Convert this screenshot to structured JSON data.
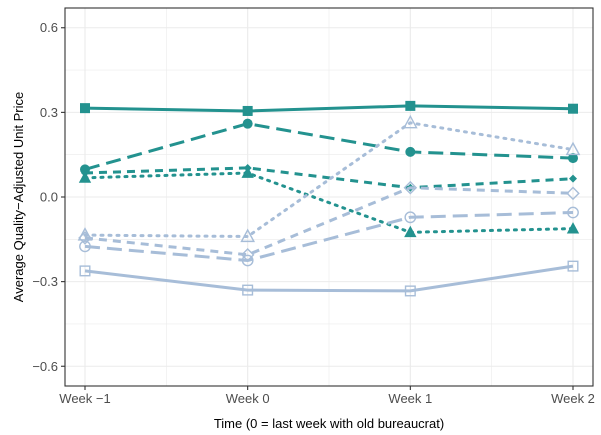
{
  "chart_data": {
    "type": "line",
    "xlabel": "Time (0 = last week with old bureaucrat)",
    "ylabel": "Average Quality−Adjusted Unit Price",
    "categories": [
      "Week −1",
      "Week 0",
      "Week 1",
      "Week 2"
    ],
    "ylim": [
      -0.67,
      0.67
    ],
    "yticks": [
      -0.6,
      -0.3,
      0.0,
      0.3,
      0.6
    ],
    "ytick_labels": [
      "−0.6",
      "−0.3",
      "0.0",
      "0.3",
      "0.6"
    ],
    "grid": true,
    "legend": "none",
    "colors": {
      "dark": "#23928f",
      "light": "#a7bdd8",
      "grid": "#ebebeb",
      "panel_border": "#333333"
    },
    "series": [
      {
        "color": "#23928f",
        "line": "solid",
        "marker": "square",
        "filled": true,
        "values": [
          0.315,
          0.305,
          0.323,
          0.313
        ]
      },
      {
        "color": "#23928f",
        "line": "longdash",
        "marker": "circle",
        "filled": true,
        "values": [
          0.098,
          0.26,
          0.16,
          0.138
        ]
      },
      {
        "color": "#23928f",
        "line": "dash",
        "marker": "diamond",
        "filled": true,
        "values": [
          0.085,
          0.103,
          0.033,
          0.065
        ]
      },
      {
        "color": "#23928f",
        "line": "dotted",
        "marker": "triangle",
        "filled": true,
        "values": [
          0.068,
          0.085,
          -0.125,
          -0.112
        ]
      },
      {
        "color": "#a7bdd8",
        "line": "dotted",
        "marker": "triangle-open",
        "filled": false,
        "values": [
          -0.135,
          -0.14,
          0.263,
          0.168
        ]
      },
      {
        "color": "#a7bdd8",
        "line": "dash",
        "marker": "diamond-open",
        "filled": false,
        "values": [
          -0.145,
          -0.205,
          0.033,
          0.013
        ]
      },
      {
        "color": "#a7bdd8",
        "line": "longdash",
        "marker": "circle-open",
        "filled": false,
        "values": [
          -0.175,
          -0.225,
          -0.072,
          -0.055
        ]
      },
      {
        "color": "#a7bdd8",
        "line": "solid",
        "marker": "square-open",
        "filled": false,
        "values": [
          -0.262,
          -0.33,
          -0.333,
          -0.245
        ]
      }
    ]
  }
}
